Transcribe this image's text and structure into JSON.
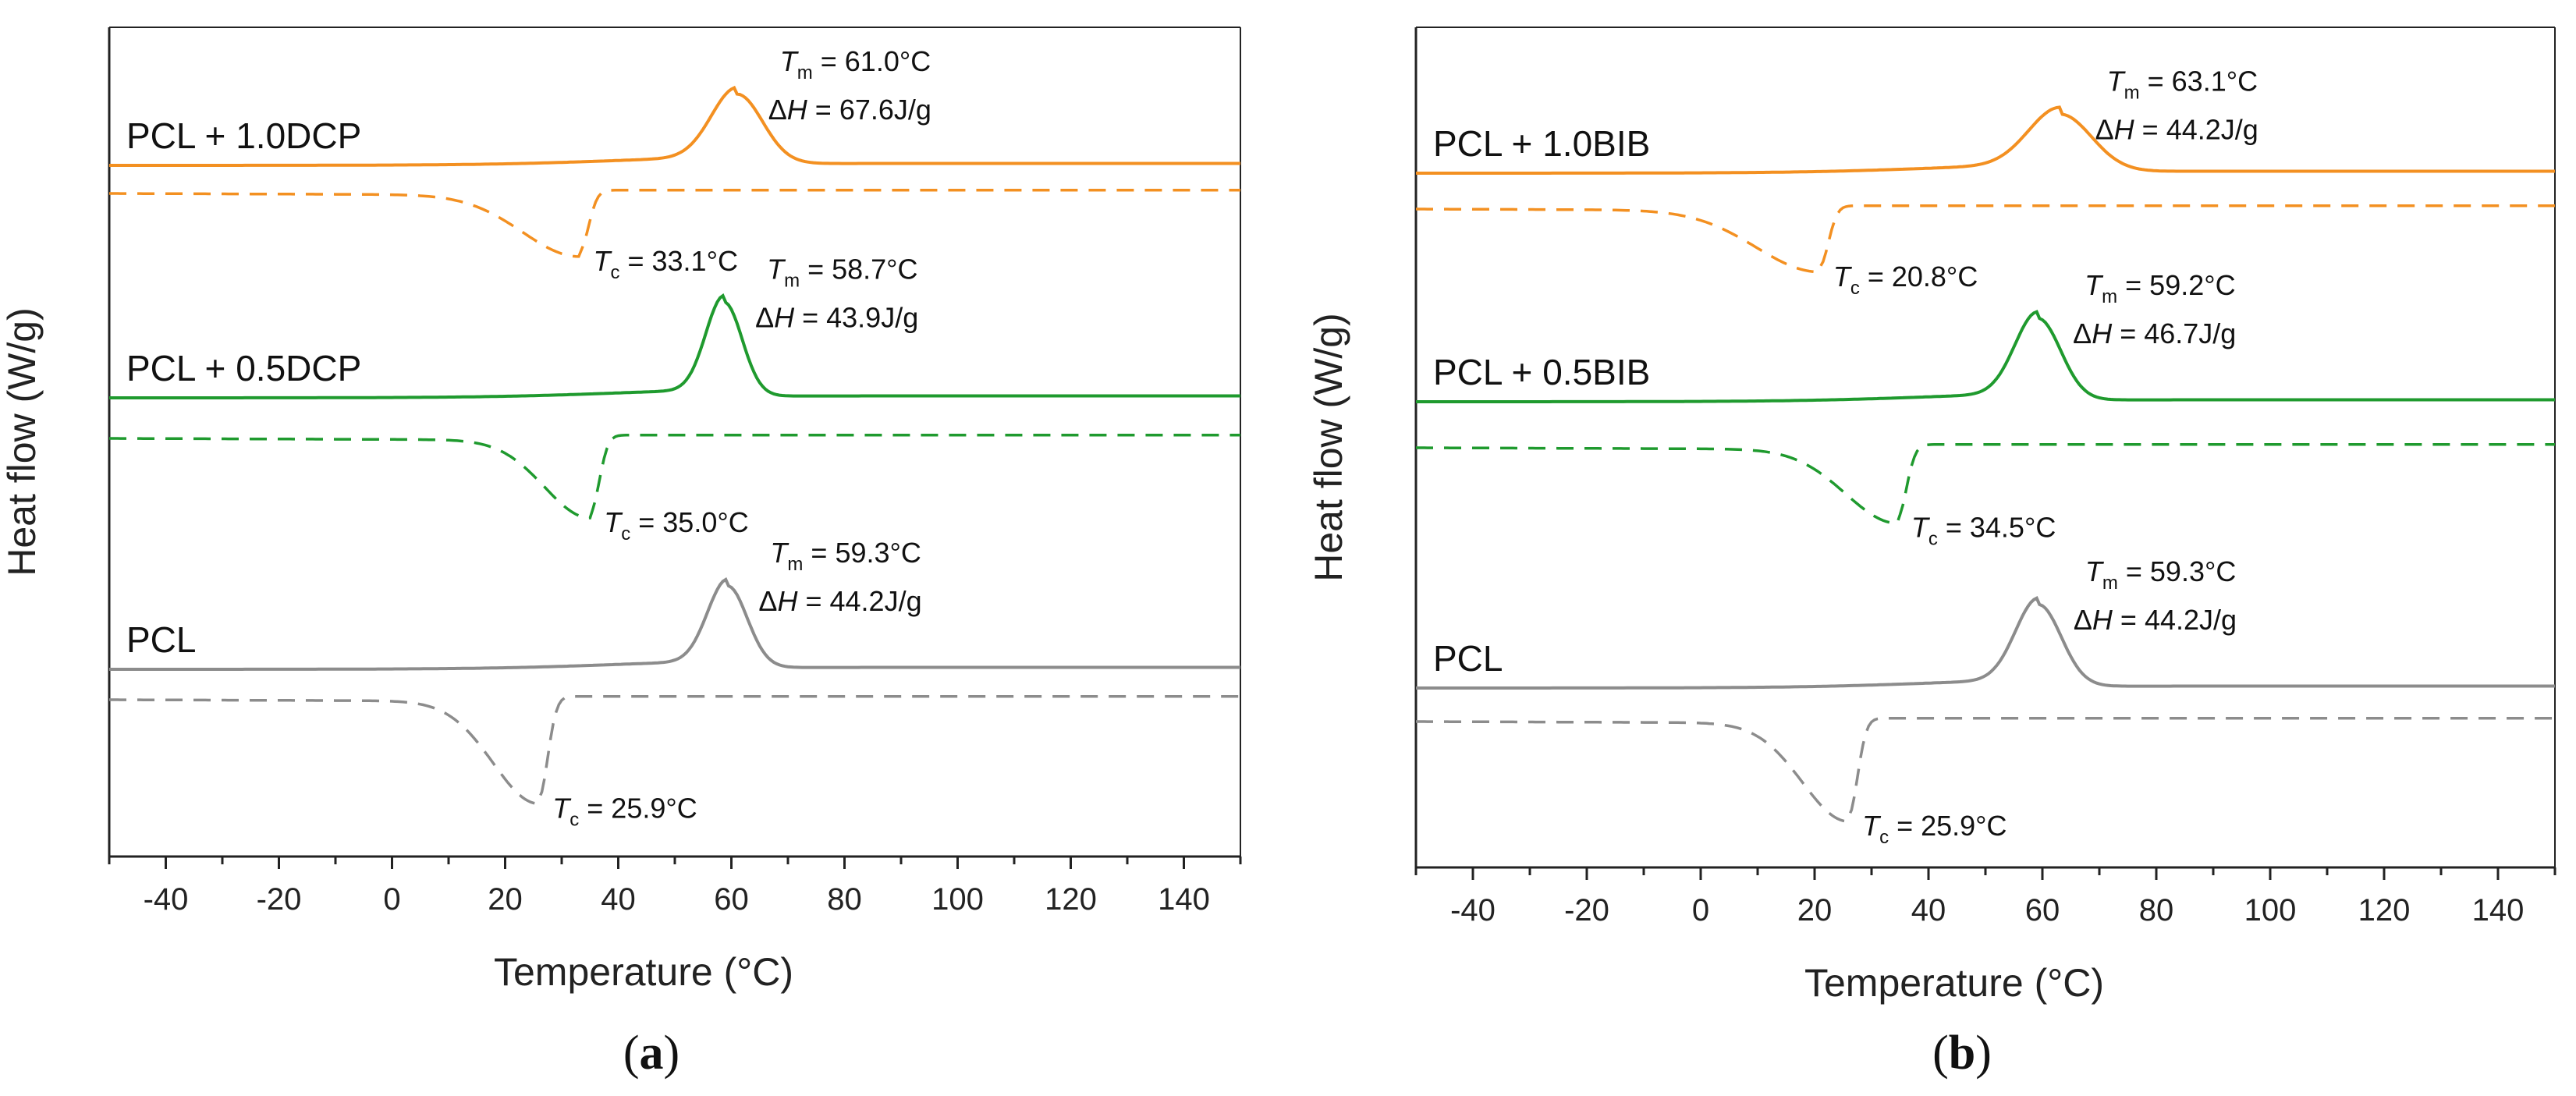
{
  "chart_data": [
    {
      "type": "line",
      "panel_label": "a",
      "xlabel": "Temperature (°C)",
      "ylabel": "Heat flow (W/g)",
      "xlim": [
        -50,
        150
      ],
      "xticks": [
        -40,
        -20,
        0,
        20,
        40,
        60,
        80,
        100,
        120,
        140
      ],
      "y_ticks_shown": false,
      "series": [
        {
          "name": "PCL + 1.0DCP",
          "color": "#f39021",
          "offset": 3,
          "Tm": 61.0,
          "dH": 67.6,
          "Tc": 33.1,
          "Tm_text": "= 61.0°C",
          "dH_text": "= 67.6J/g",
          "Tc_text": "= 33.1°C",
          "melt_peak_height": 0.85,
          "melt_peak_width": 4.5,
          "cryst_depth": 0.75,
          "cryst_width": 10
        },
        {
          "name": "PCL + 0.5DCP",
          "color": "#1f9a2e",
          "offset": 2,
          "Tm": 58.7,
          "dH": 43.9,
          "Tc": 35.0,
          "Tm_text": "= 58.7°C",
          "dH_text": "= 43.9J/g",
          "Tc_text": "= 35.0°C",
          "melt_peak_height": 1.15,
          "melt_peak_width": 3.2,
          "cryst_depth": 0.95,
          "cryst_width": 8
        },
        {
          "name": "PCL",
          "color": "#8c8c8c",
          "offset": 1,
          "Tm": 59.3,
          "dH": 44.2,
          "Tc": 25.9,
          "Tm_text": "= 59.3°C",
          "dH_text": "= 44.2J/g",
          "Tc_text": "= 25.9°C",
          "melt_peak_height": 1.0,
          "melt_peak_width": 3.5,
          "cryst_depth": 1.25,
          "cryst_width": 8
        }
      ]
    },
    {
      "type": "line",
      "panel_label": "b",
      "xlabel": "Temperature (°C)",
      "ylabel": "Heat flow (W/g)",
      "xlim": [
        -50,
        150
      ],
      "xticks": [
        -40,
        -20,
        0,
        20,
        40,
        60,
        80,
        100,
        120,
        140
      ],
      "y_ticks_shown": false,
      "series": [
        {
          "name": "PCL + 1.0BIB",
          "color": "#f39021",
          "offset": 3,
          "Tm": 63.1,
          "dH": 44.2,
          "Tc": 20.8,
          "Tm_text": "= 63.1°C",
          "dH_text": "= 44.2J/g",
          "Tc_text": "= 20.8°C",
          "melt_peak_height": 0.7,
          "melt_peak_width": 5.5,
          "cryst_depth": 0.75,
          "cryst_width": 11
        },
        {
          "name": "PCL + 0.5BIB",
          "color": "#1f9a2e",
          "offset": 2,
          "Tm": 59.2,
          "dH": 46.7,
          "Tc": 34.5,
          "Tm_text": "= 59.2°C",
          "dH_text": "= 46.7J/g",
          "Tc_text": "= 34.5°C",
          "melt_peak_height": 1.0,
          "melt_peak_width": 4.0,
          "cryst_depth": 0.9,
          "cryst_width": 9
        },
        {
          "name": "PCL",
          "color": "#8c8c8c",
          "offset": 1,
          "Tm": 59.3,
          "dH": 44.2,
          "Tc": 25.9,
          "Tm_text": "= 59.3°C",
          "dH_text": "= 44.2J/g",
          "Tc_text": "= 25.9°C",
          "melt_peak_height": 1.0,
          "melt_peak_width": 4.0,
          "cryst_depth": 1.2,
          "cryst_width": 8
        }
      ]
    }
  ],
  "annotation_symbols": {
    "Tm_main": "T",
    "Tm_sub": "m",
    "dH_prefix": "Δ",
    "dH_var": "H",
    "Tc_main": "T",
    "Tc_sub": "c"
  }
}
